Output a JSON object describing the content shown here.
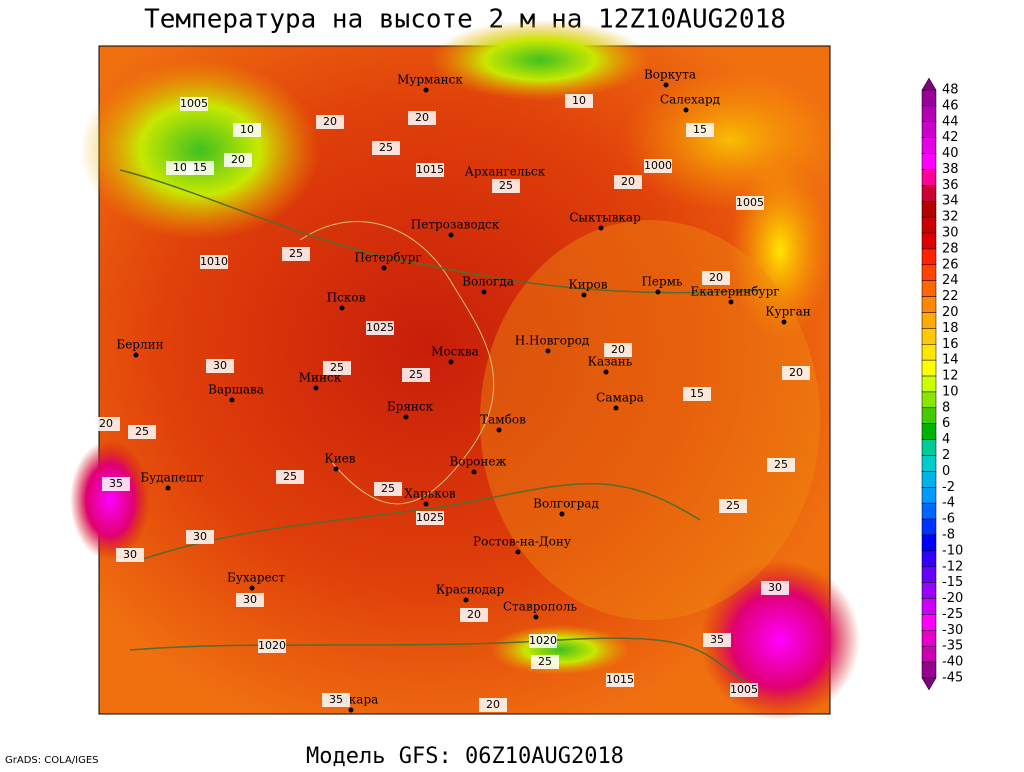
{
  "title": "Температура на высоте 2 м на 12Z10AUG2018",
  "model": "Модель GFS: 06Z10AUG2018",
  "credit": "GrADS: COLA/IGES",
  "cities": [
    "Мурманск",
    "Воркута",
    "Салехард",
    "Архангельск",
    "Сыктывкар",
    "Петрозаводск",
    "Петербург",
    "Вологда",
    "Киров",
    "Пермь",
    "Екатеринбург",
    "Курган",
    "Псков",
    "Н.Новгород",
    "Москва",
    "Казань",
    "Берлин",
    "Минск",
    "Варшава",
    "Самара",
    "Брянск",
    "Тамбов",
    "Киев",
    "Воронеж",
    "Будапешт",
    "Харьков",
    "Волгоград",
    "Ростов-на-Дону",
    "Бухарест",
    "Краснодар",
    "Ставрополь",
    "Анкара"
  ],
  "contour_labels": [
    "1005",
    "10",
    "20",
    "10",
    "15",
    "20",
    "25",
    "1015",
    "20",
    "25",
    "1000",
    "20",
    "1005",
    "15",
    "1010",
    "25",
    "20",
    "1025",
    "30",
    "25",
    "25",
    "15",
    "20",
    "20",
    "25",
    "35",
    "25",
    "30",
    "25",
    "1025",
    "25",
    "30",
    "25",
    "30",
    "1020",
    "20",
    "35",
    "1005",
    "1015",
    "1020",
    "20",
    "25",
    "35",
    "20",
    "10",
    "30"
  ],
  "colorbar": {
    "labels": [
      "48",
      "46",
      "44",
      "42",
      "40",
      "38",
      "36",
      "34",
      "32",
      "30",
      "28",
      "26",
      "24",
      "22",
      "20",
      "18",
      "16",
      "14",
      "12",
      "10",
      "8",
      "6",
      "4",
      "2",
      "0",
      "-2",
      "-4",
      "-6",
      "-8",
      "-10",
      "-12",
      "-15",
      "-20",
      "-25",
      "-30",
      "-35",
      "-40",
      "-45"
    ],
    "colors": [
      "#800080",
      "#990099",
      "#b300b3",
      "#cc00cc",
      "#e600e6",
      "#ff00ff",
      "#ff0099",
      "#cc0033",
      "#b30000",
      "#cc0000",
      "#e00000",
      "#ff2200",
      "#ff4400",
      "#ff6600",
      "#ff8800",
      "#ffaa00",
      "#ffc800",
      "#ffe600",
      "#ffff00",
      "#ccff00",
      "#88e600",
      "#44cc00",
      "#00b300",
      "#00cc99",
      "#00cccc",
      "#00b3e6",
      "#0099ff",
      "#0066ff",
      "#0033ff",
      "#0000ff",
      "#3300ff",
      "#6600ff",
      "#9900ff",
      "#cc00ff",
      "#ff00ff",
      "#e600cc",
      "#cc00b3",
      "#99008f",
      "#800080"
    ]
  }
}
